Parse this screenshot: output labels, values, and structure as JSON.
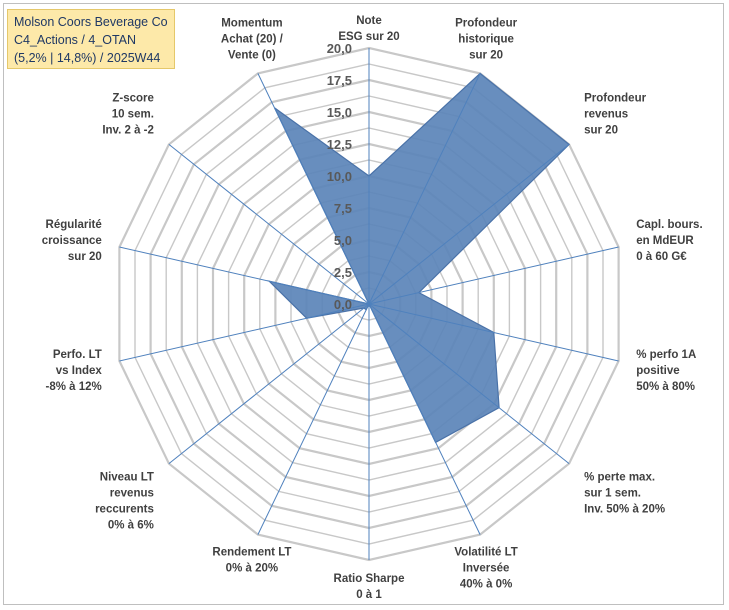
{
  "header": {
    "line1": "Molson Coors Beverage Co",
    "line2": "C4_Actions / 4_OTAN",
    "line3": "(5,2% | 14,8%) / 2025W44"
  },
  "chart_data": {
    "type": "radar",
    "rlim": [
      0,
      20
    ],
    "tick_labels": [
      "0,0",
      "2,5",
      "5,0",
      "7,5",
      "10,0",
      "12,5",
      "15,0",
      "17,5",
      "20,0"
    ],
    "grid": true,
    "colors": {
      "fill": "#5b84b9",
      "outline": "#4a72a8",
      "grid": "#c8c8c8",
      "spoke": "#4f81bd"
    },
    "axes": [
      {
        "label": [
          "Note",
          "ESG sur 20"
        ],
        "value": 10.0
      },
      {
        "label": [
          "Profondeur",
          "historique",
          "sur 20"
        ],
        "value": 20.0
      },
      {
        "label": [
          "Profondeur",
          "revenus",
          "sur 20"
        ],
        "value": 20.0
      },
      {
        "label": [
          "Capl. bours.",
          "en MdEUR",
          "0 à 60 G€"
        ],
        "value": 4.0
      },
      {
        "label": [
          "% perfo 1A",
          "positive",
          "50% à 80%"
        ],
        "value": 10.0
      },
      {
        "label": [
          "% perte max.",
          "sur 1 sem.",
          "Inv. 50% à 20%"
        ],
        "value": 13.0
      },
      {
        "label": [
          "Volatilité LT",
          "Inversée",
          "40% à 0%"
        ],
        "value": 12.0
      },
      {
        "label": [
          "Ratio Sharpe",
          "0 à 1"
        ],
        "value": 0.0
      },
      {
        "label": [
          "Rendement LT",
          "0% à 20%"
        ],
        "value": 0.5
      },
      {
        "label": [
          "Niveau LT",
          "revenus",
          "reccurents",
          "0% à 6%"
        ],
        "value": 0.5
      },
      {
        "label": [
          "Perfo. LT",
          "vs Index",
          "-8% à 12%"
        ],
        "value": 5.0
      },
      {
        "label": [
          "Régularité",
          "croissance",
          "sur 20"
        ],
        "value": 8.0
      },
      {
        "label": [
          "Z-score",
          "10 sem.",
          "Inv. 2 à -2"
        ],
        "value": 0.0
      },
      {
        "label": [
          "Momentum",
          "Achat (20) /",
          "Vente (0)"
        ],
        "value": 17.0
      }
    ]
  }
}
